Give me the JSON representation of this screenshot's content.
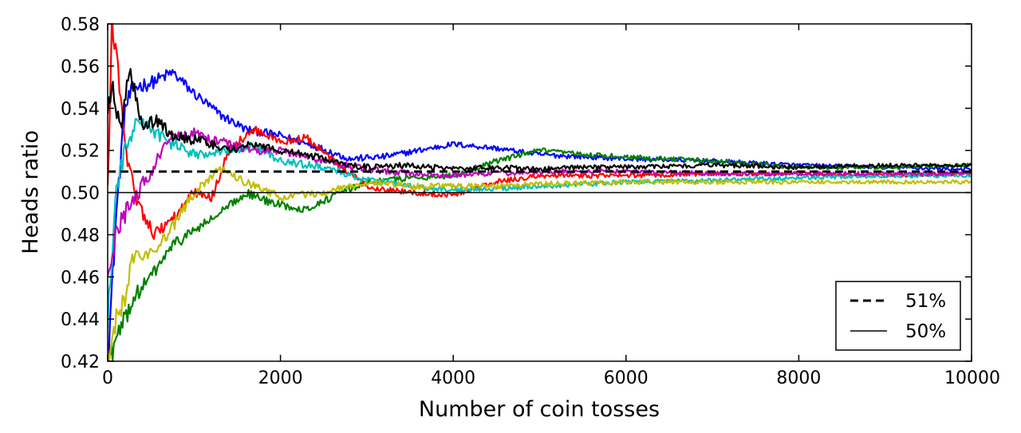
{
  "chart_data": {
    "type": "line",
    "title": "",
    "xlabel": "Number of coin tosses",
    "ylabel": "Heads ratio",
    "xlim": [
      0,
      10000
    ],
    "ylim": [
      0.42,
      0.58
    ],
    "xticks": [
      0,
      2000,
      4000,
      6000,
      8000,
      10000
    ],
    "xtick_labels": [
      "0",
      "2000",
      "4000",
      "6000",
      "8000",
      "10000"
    ],
    "yticks": [
      0.42,
      0.44,
      0.46,
      0.48,
      0.5,
      0.52,
      0.54,
      0.56,
      0.58
    ],
    "ytick_labels": [
      "0.42",
      "0.44",
      "0.46",
      "0.48",
      "0.50",
      "0.52",
      "0.54",
      "0.56",
      "0.58"
    ],
    "grid": false,
    "legend_position": "bottom-right",
    "reference_lines": [
      {
        "name": "51%",
        "y": 0.51,
        "style": "dashed",
        "color": "#000000"
      },
      {
        "name": "50%",
        "y": 0.5,
        "style": "solid",
        "color": "#000000"
      }
    ],
    "series": [
      {
        "color": "#0000ff",
        "x": [
          0,
          100,
          200,
          300,
          500,
          750,
          1000,
          1300,
          1600,
          2000,
          2400,
          2800,
          3200,
          3600,
          4000,
          4500,
          5000,
          5500,
          6000,
          7000,
          8000,
          9000,
          10000
        ],
        "y": [
          0.42,
          0.49,
          0.54,
          0.55,
          0.552,
          0.557,
          0.547,
          0.537,
          0.53,
          0.527,
          0.522,
          0.516,
          0.517,
          0.52,
          0.523,
          0.521,
          0.518,
          0.517,
          0.516,
          0.515,
          0.513,
          0.512,
          0.511
        ]
      },
      {
        "color": "#008000",
        "x": [
          0,
          100,
          200,
          300,
          500,
          750,
          1000,
          1300,
          1600,
          1900,
          2300,
          2700,
          3000,
          3500,
          4000,
          4500,
          5000,
          5500,
          6000,
          7000,
          8000,
          9000,
          10000
        ],
        "y": [
          0.42,
          0.43,
          0.44,
          0.45,
          0.46,
          0.475,
          0.482,
          0.49,
          0.5,
          0.495,
          0.492,
          0.5,
          0.505,
          0.507,
          0.508,
          0.515,
          0.52,
          0.518,
          0.517,
          0.515,
          0.512,
          0.512,
          0.513
        ]
      },
      {
        "color": "#ff0000",
        "x": [
          0,
          50,
          120,
          200,
          350,
          550,
          800,
          1000,
          1200,
          1400,
          1700,
          2000,
          2300,
          2700,
          3000,
          3500,
          4000,
          4500,
          5000,
          6000,
          7000,
          8000,
          9000,
          10000
        ],
        "y": [
          0.5,
          0.58,
          0.56,
          0.52,
          0.495,
          0.48,
          0.49,
          0.5,
          0.497,
          0.52,
          0.53,
          0.524,
          0.526,
          0.512,
          0.503,
          0.5,
          0.499,
          0.505,
          0.508,
          0.508,
          0.509,
          0.509,
          0.508,
          0.509
        ]
      },
      {
        "color": "#00bfbf",
        "x": [
          0,
          100,
          200,
          350,
          500,
          750,
          1000,
          1300,
          1700,
          2000,
          2500,
          3000,
          3500,
          4000,
          4500,
          5000,
          6000,
          7000,
          8000,
          9000,
          10000
        ],
        "y": [
          0.44,
          0.5,
          0.52,
          0.535,
          0.53,
          0.523,
          0.518,
          0.52,
          0.522,
          0.515,
          0.512,
          0.506,
          0.503,
          0.501,
          0.502,
          0.503,
          0.505,
          0.506,
          0.507,
          0.508,
          0.508
        ]
      },
      {
        "color": "#bf00bf",
        "x": [
          0,
          100,
          200,
          350,
          500,
          700,
          1000,
          1300,
          1700,
          2000,
          2500,
          3000,
          3500,
          4000,
          4500,
          5000,
          6000,
          7000,
          8000,
          9000,
          10000
        ],
        "y": [
          0.46,
          0.48,
          0.49,
          0.5,
          0.51,
          0.525,
          0.528,
          0.524,
          0.52,
          0.52,
          0.515,
          0.511,
          0.509,
          0.508,
          0.509,
          0.51,
          0.51,
          0.509,
          0.509,
          0.509,
          0.509
        ]
      },
      {
        "color": "#bfbf00",
        "x": [
          0,
          100,
          200,
          300,
          450,
          700,
          1000,
          1300,
          1600,
          2000,
          2500,
          3000,
          3500,
          4000,
          4500,
          5000,
          6000,
          7000,
          8000,
          9000,
          10000
        ],
        "y": [
          0.42,
          0.44,
          0.45,
          0.47,
          0.47,
          0.48,
          0.5,
          0.512,
          0.505,
          0.498,
          0.5,
          0.505,
          0.503,
          0.503,
          0.503,
          0.504,
          0.505,
          0.505,
          0.505,
          0.505,
          0.505
        ]
      },
      {
        "color": "#000000",
        "x": [
          0,
          60,
          150,
          250,
          400,
          550,
          800,
          1100,
          1400,
          1700,
          2000,
          2300,
          2700,
          3000,
          3500,
          4000,
          4500,
          5000,
          5500,
          6000,
          7000,
          8000,
          9000,
          10000
        ],
        "y": [
          0.54,
          0.55,
          0.53,
          0.56,
          0.53,
          0.534,
          0.526,
          0.525,
          0.52,
          0.523,
          0.52,
          0.518,
          0.514,
          0.512,
          0.513,
          0.511,
          0.512,
          0.511,
          0.512,
          0.512,
          0.513,
          0.512,
          0.513,
          0.513
        ]
      }
    ]
  }
}
